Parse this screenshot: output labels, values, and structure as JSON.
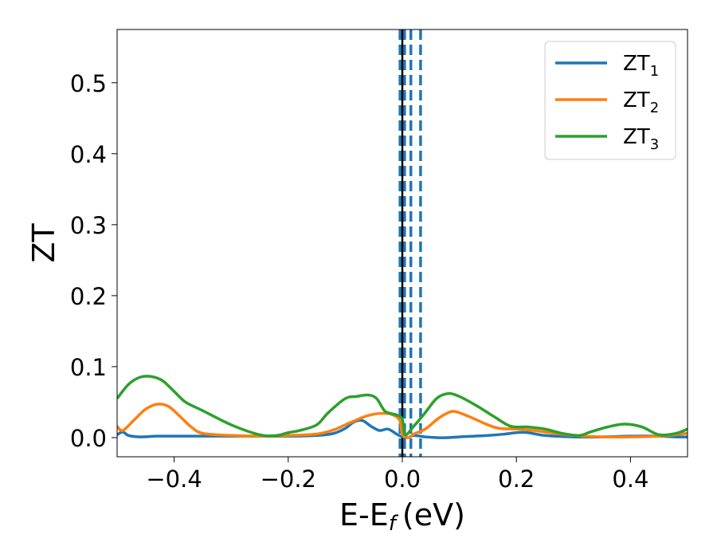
{
  "chart_data": {
    "type": "line",
    "xlabel": "E-E",
    "xlabel_sub": "f",
    "xlabel_unit": "(eV)",
    "ylabel": "ZT",
    "xlim": [
      -0.5,
      0.5
    ],
    "ylim": [
      -0.027,
      0.575
    ],
    "xticks": [
      -0.4,
      -0.2,
      0.0,
      0.2,
      0.4
    ],
    "xtick_labels": [
      "−0.4",
      "−0.2",
      "0.0",
      "0.2",
      "0.4"
    ],
    "yticks": [
      0.0,
      0.1,
      0.2,
      0.3,
      0.4,
      0.5
    ],
    "ytick_labels": [
      "0.0",
      "0.1",
      "0.2",
      "0.3",
      "0.4",
      "0.5"
    ],
    "grid": false,
    "legend_position": "top-right",
    "colors": {
      "zt1": "#1f77b4",
      "zt2": "#ff7f0e",
      "zt3": "#2ca02c",
      "fermi": "#000000"
    },
    "vlines": [
      {
        "x": 0.0,
        "style": "solid",
        "color": "#000000"
      },
      {
        "x": -0.004,
        "style": "dashed",
        "color": "#1f77b4"
      },
      {
        "x": 0.004,
        "style": "dashed",
        "color": "#1f77b4"
      },
      {
        "x": 0.015,
        "style": "dashed",
        "color": "#1f77b4"
      },
      {
        "x": 0.032,
        "style": "dashed",
        "color": "#1f77b4"
      }
    ],
    "series": [
      {
        "name": "ZT",
        "sub": "1",
        "color": "#1f77b4",
        "x": [
          -0.5,
          -0.49,
          -0.48,
          -0.46,
          -0.43,
          -0.4,
          -0.35,
          -0.3,
          -0.25,
          -0.2,
          -0.15,
          -0.12,
          -0.1,
          -0.085,
          -0.07,
          -0.055,
          -0.04,
          -0.025,
          -0.01,
          0.0,
          0.01,
          0.02,
          0.04,
          0.06,
          0.08,
          0.1,
          0.15,
          0.18,
          0.2,
          0.22,
          0.25,
          0.3,
          0.35,
          0.4,
          0.45,
          0.48,
          0.5
        ],
        "values": [
          0.004,
          0.008,
          0.003,
          0.001,
          0.002,
          0.002,
          0.002,
          0.002,
          0.002,
          0.002,
          0.003,
          0.006,
          0.013,
          0.022,
          0.024,
          0.016,
          0.01,
          0.012,
          0.005,
          0.001,
          0.0,
          0.003,
          0.001,
          0.0,
          0.0,
          0.001,
          0.003,
          0.005,
          0.007,
          0.007,
          0.003,
          0.001,
          0.001,
          0.002,
          0.002,
          0.001,
          0.001
        ]
      },
      {
        "name": "ZT",
        "sub": "2",
        "color": "#ff7f0e",
        "x": [
          -0.5,
          -0.49,
          -0.47,
          -0.45,
          -0.43,
          -0.41,
          -0.39,
          -0.37,
          -0.35,
          -0.3,
          -0.25,
          -0.2,
          -0.15,
          -0.12,
          -0.1,
          -0.08,
          -0.06,
          -0.04,
          -0.02,
          -0.005,
          0.0,
          0.01,
          0.02,
          0.04,
          0.06,
          0.075,
          0.09,
          0.11,
          0.13,
          0.15,
          0.17,
          0.2,
          0.23,
          0.26,
          0.3,
          0.35,
          0.4,
          0.45,
          0.5
        ],
        "values": [
          0.016,
          0.01,
          0.025,
          0.04,
          0.047,
          0.044,
          0.03,
          0.015,
          0.006,
          0.003,
          0.002,
          0.003,
          0.005,
          0.011,
          0.018,
          0.025,
          0.031,
          0.034,
          0.033,
          0.025,
          0.005,
          0.0,
          0.005,
          0.012,
          0.025,
          0.033,
          0.037,
          0.032,
          0.025,
          0.018,
          0.013,
          0.012,
          0.01,
          0.007,
          0.003,
          0.001,
          0.001,
          0.002,
          0.006
        ]
      },
      {
        "name": "ZT",
        "sub": "3",
        "color": "#2ca02c",
        "x": [
          -0.5,
          -0.48,
          -0.46,
          -0.44,
          -0.42,
          -0.4,
          -0.38,
          -0.35,
          -0.3,
          -0.25,
          -0.22,
          -0.2,
          -0.18,
          -0.15,
          -0.13,
          -0.1,
          -0.08,
          -0.06,
          -0.045,
          -0.03,
          -0.01,
          0.0,
          0.005,
          0.02,
          0.04,
          0.06,
          0.08,
          0.1,
          0.13,
          0.16,
          0.19,
          0.22,
          0.25,
          0.28,
          0.31,
          0.33,
          0.36,
          0.39,
          0.42,
          0.45,
          0.48,
          0.5
        ],
        "values": [
          0.055,
          0.075,
          0.085,
          0.086,
          0.08,
          0.065,
          0.05,
          0.038,
          0.018,
          0.004,
          0.003,
          0.007,
          0.01,
          0.018,
          0.035,
          0.055,
          0.058,
          0.06,
          0.055,
          0.037,
          0.032,
          0.026,
          0.004,
          0.016,
          0.035,
          0.055,
          0.062,
          0.058,
          0.045,
          0.03,
          0.016,
          0.015,
          0.012,
          0.006,
          0.003,
          0.008,
          0.015,
          0.019,
          0.015,
          0.004,
          0.006,
          0.012
        ]
      }
    ]
  }
}
